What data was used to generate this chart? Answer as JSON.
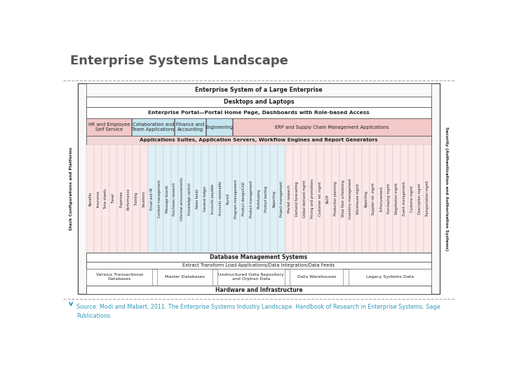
{
  "title": "Enterprise Systems Landscape",
  "source_text": "Source: Modi and Mabert, 2011. The Enterprise Systems Industry Landscape. Handbook of Research in Enterprise Systems. Sage\nPublications",
  "diagram_title": "Enterprise System of a Large Enterprise",
  "title_color": "#555555",
  "title_fontsize": 13,
  "bg_color": "#ffffff",
  "dashed_line_color": "#aaaaaa",
  "source_color": "#3399bb",
  "arrow_color": "#3399bb",
  "desktops_label": "Desktops and Laptops",
  "hardware_label": "Hardware and Infrastructure",
  "portal_label": "Enterprise Portal—Portal Home Page, Dashboards with Role-based Access",
  "appsuites_label": "Applications Suites, Application Servers, Workflow Engines and Report Generators",
  "dbms_label": "Database Management Systems",
  "etl_label": "Extract Transform Load Applications/Data Integration/Data Feeds",
  "security_label": "Security (Authentication and Authorization Systems)",
  "stack_label": "Stack Configurations and Platforms",
  "app_sections": [
    {
      "label": "HR and Employee\nSelf Service",
      "color": "#f2c8c8",
      "xf": 0.0,
      "wf": 0.13
    },
    {
      "label": "Collaboration and\nTeam Applications",
      "color": "#c5e5ef",
      "xf": 0.132,
      "wf": 0.122
    },
    {
      "label": "Finance and\nAccounting",
      "color": "#c5e5ef",
      "xf": 0.256,
      "wf": 0.09
    },
    {
      "label": "Engineering",
      "color": "#c5e5ef",
      "xf": 0.348,
      "wf": 0.075
    },
    {
      "label": "ERP and Supply Chain Management Applications",
      "color": "#f2c8c8",
      "xf": 0.425,
      "wf": 0.575
    }
  ],
  "hr_items": [
    "Benefits",
    "Insurance",
    "Time sheets",
    "Travel",
    "Expenses",
    "Performance",
    "Training",
    "Vacations"
  ],
  "collab_items": [
    "Email and IM",
    "Content management",
    "Message boards",
    "Purchases research",
    "Informal announcements",
    "Knowledge central",
    "News feeds"
  ],
  "finance_items": [
    "General ledger",
    "Accounts payable",
    "Accounts receivable",
    "Payroll"
  ],
  "engineering_items": [
    "Program management",
    "Product design/CAD",
    "Product management",
    "Prototyping",
    "Product testing",
    "Reporting",
    "Project management"
  ],
  "erp_items": [
    "Market research",
    "Demand forecasting",
    "Global demand mgmt",
    "Pricing and promotions",
    "Customer rel. mgmt",
    "S&OP",
    "Production planning",
    "Shop floor scheduling",
    "Inventory management",
    "Warehouse mgmt",
    "Reporting",
    "Supplier rel. mgmt",
    "E-Procurement",
    "Purchasing mgmt",
    "Negotiation mgmt",
    "Event management",
    "Customs mgmt",
    "Description mgmt",
    "Transportation mgmt"
  ],
  "db_sections": [
    {
      "label": "Various Transactional\nDatabases",
      "xf": 0.0,
      "wf": 0.19
    },
    {
      "label": "Master Databases",
      "xf": 0.205,
      "wf": 0.16
    },
    {
      "label": "Unstructured Data Repository\nand Orphan Data",
      "xf": 0.38,
      "wf": 0.195
    },
    {
      "label": "Data Warehouses",
      "xf": 0.59,
      "wf": 0.155
    },
    {
      "label": "Legacy Systems Data",
      "xf": 0.76,
      "wf": 0.24
    }
  ],
  "hr_bg": "#fce8e8",
  "col_bg": "#dff0f7",
  "erp_bg": "#fce8e8"
}
